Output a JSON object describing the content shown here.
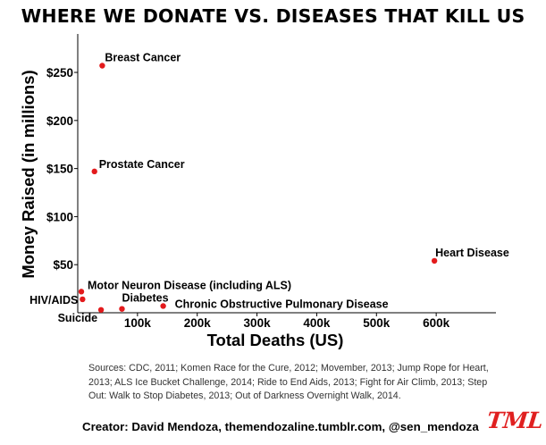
{
  "title": "WHERE WE DONATE VS. DISEASES THAT KILL US",
  "sources": "Sources: CDC, 2011; Komen Race for the Cure, 2012; Movember, 2013; Jump Rope for Heart, 2013; ALS Ice Bucket Challenge, 2014; Ride to End Aids, 2013; Fight for Air Climb, 2013; Step Out: Walk to Stop Diabetes, 2013; Out of Darkness Overnight Walk, 2014.",
  "creator": "Creator: David Mendoza, themendozaline.tumblr.com, @sen_mendoza",
  "logo": "TML",
  "colors": {
    "point": "#e31a1c",
    "axis": "#000000"
  },
  "chart_data": {
    "type": "scatter",
    "title": "WHERE WE DONATE VS. DISEASES THAT KILL US",
    "xlabel": "Total Deaths (US)",
    "ylabel": "Money Raised (in millions)",
    "xlim": [
      0,
      700000
    ],
    "ylim": [
      0,
      290
    ],
    "x_ticks": [
      100000,
      200000,
      300000,
      400000,
      500000,
      600000
    ],
    "x_tick_labels": [
      "100k",
      "200k",
      "300k",
      "400k",
      "500k",
      "600k"
    ],
    "y_ticks": [
      50,
      100,
      150,
      200,
      250
    ],
    "y_tick_labels": [
      "$50",
      "$100",
      "$150",
      "$200",
      "$250"
    ],
    "grid": false,
    "points": [
      {
        "label": "Breast Cancer",
        "x": 41000,
        "y": 257
      },
      {
        "label": "Prostate Cancer",
        "x": 28000,
        "y": 147
      },
      {
        "label": "Heart Disease",
        "x": 597000,
        "y": 54
      },
      {
        "label": "Motor Neuron Disease (including ALS)",
        "x": 6000,
        "y": 22
      },
      {
        "label": "HIV/AIDS",
        "x": 8000,
        "y": 14
      },
      {
        "label": "Diabetes",
        "x": 74000,
        "y": 4
      },
      {
        "label": "Suicide",
        "x": 39000,
        "y": 3
      },
      {
        "label": "Chronic Obstructive Pulmonary Disease",
        "x": 143000,
        "y": 7
      }
    ]
  }
}
